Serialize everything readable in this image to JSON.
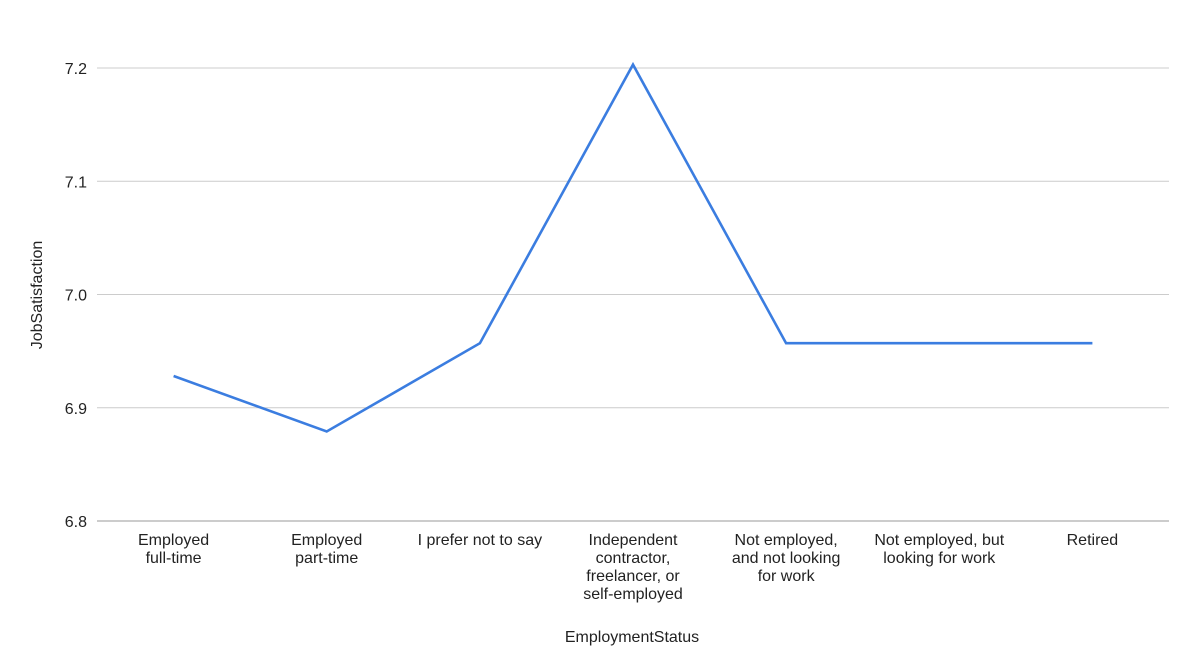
{
  "chart_data": {
    "type": "line",
    "title": "",
    "xlabel": "EmploymentStatus",
    "ylabel": "JobSatisfaction",
    "ylim": [
      6.8,
      7.2
    ],
    "yticks": [
      "6.8",
      "6.9",
      "7.0",
      "7.1",
      "7.2"
    ],
    "ytick_values": [
      6.8,
      6.9,
      7.0,
      7.1,
      7.2
    ],
    "grid": true,
    "legend": "none",
    "line_color": "#3b7de0",
    "categories": [
      [
        "Employed",
        "full-time"
      ],
      [
        "Employed",
        "part-time"
      ],
      [
        "I prefer not to say"
      ],
      [
        "Independent",
        "contractor,",
        "freelancer, or",
        "self-employed"
      ],
      [
        "Not employed,",
        "and not looking",
        "for work"
      ],
      [
        "Not employed, but",
        "looking for work"
      ],
      [
        "Retired"
      ]
    ],
    "series": [
      {
        "values": [
          6.928,
          6.879,
          6.957,
          7.203,
          6.957,
          6.957,
          6.957
        ]
      }
    ]
  }
}
